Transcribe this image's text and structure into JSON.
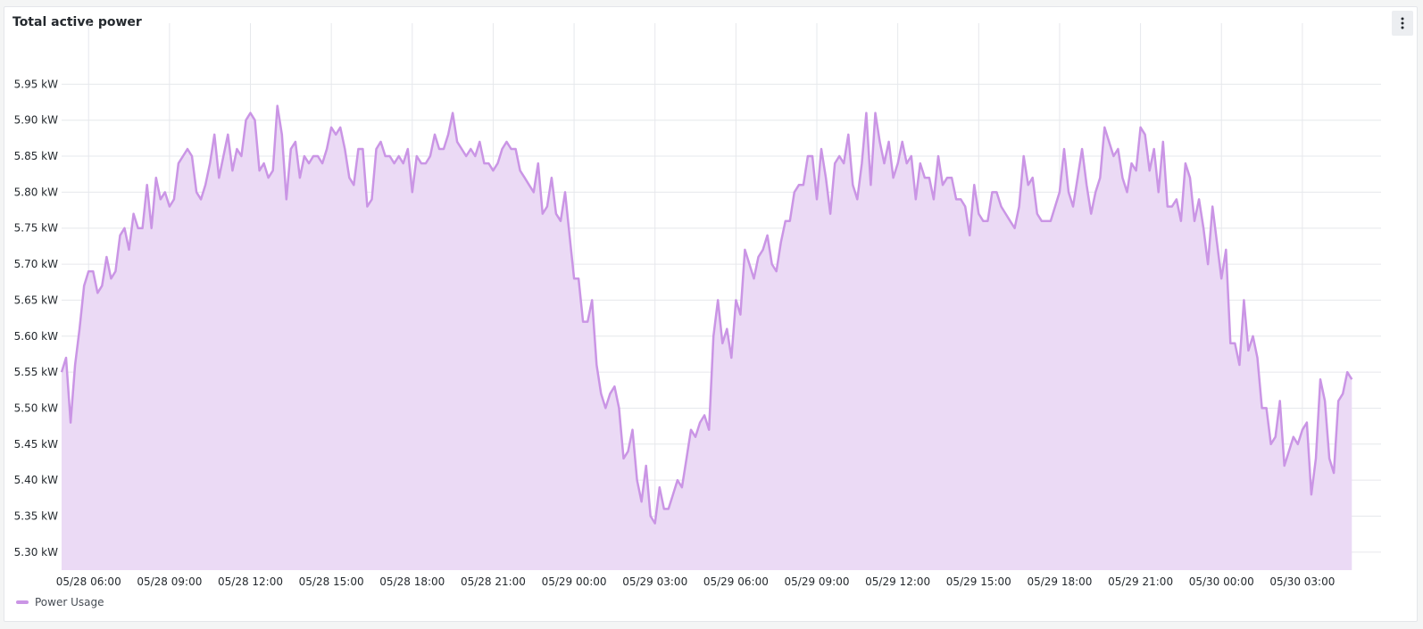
{
  "panel": {
    "title": "Total active power"
  },
  "colors": {
    "series": "#ca95e5",
    "fill": "#ebdaf5",
    "grid": "#e6e8ec",
    "text": "#24292e"
  },
  "chart_data": {
    "type": "area",
    "ylim": [
      5.275,
      6.0
    ],
    "yticks": [
      5.3,
      5.35,
      5.4,
      5.45,
      5.5,
      5.55,
      5.6,
      5.65,
      5.7,
      5.75,
      5.8,
      5.85,
      5.9,
      5.95
    ],
    "ytick_labels": [
      "5.30 kW",
      "5.35 kW",
      "5.40 kW",
      "5.45 kW",
      "5.50 kW",
      "5.55 kW",
      "5.60 kW",
      "5.65 kW",
      "5.70 kW",
      "5.75 kW",
      "5.80 kW",
      "5.85 kW",
      "5.90 kW",
      "5.95 kW"
    ],
    "xlim": [
      "05/28 05:00",
      "05/30 05:55"
    ],
    "xticks": [
      "05/28 06:00",
      "05/28 09:00",
      "05/28 12:00",
      "05/28 15:00",
      "05/28 18:00",
      "05/28 21:00",
      "05/29 00:00",
      "05/29 03:00",
      "05/29 06:00",
      "05/29 09:00",
      "05/29 12:00",
      "05/29 15:00",
      "05/29 18:00",
      "05/29 21:00",
      "05/30 00:00",
      "05/30 03:00"
    ],
    "grid": true,
    "legend": "bottom-left",
    "series": [
      {
        "name": "Power Usage",
        "step_minutes": 10,
        "start": "05/28 05:00",
        "values": [
          5.55,
          5.57,
          5.48,
          5.56,
          5.61,
          5.67,
          5.69,
          5.69,
          5.66,
          5.67,
          5.71,
          5.68,
          5.69,
          5.74,
          5.75,
          5.72,
          5.77,
          5.75,
          5.75,
          5.81,
          5.75,
          5.82,
          5.79,
          5.8,
          5.78,
          5.79,
          5.84,
          5.85,
          5.86,
          5.85,
          5.8,
          5.79,
          5.81,
          5.84,
          5.88,
          5.82,
          5.85,
          5.88,
          5.83,
          5.86,
          5.85,
          5.9,
          5.91,
          5.9,
          5.83,
          5.84,
          5.82,
          5.83,
          5.92,
          5.88,
          5.79,
          5.86,
          5.87,
          5.82,
          5.85,
          5.84,
          5.85,
          5.85,
          5.84,
          5.86,
          5.89,
          5.88,
          5.89,
          5.86,
          5.82,
          5.81,
          5.86,
          5.86,
          5.78,
          5.79,
          5.86,
          5.87,
          5.85,
          5.85,
          5.84,
          5.85,
          5.84,
          5.86,
          5.8,
          5.85,
          5.84,
          5.84,
          5.85,
          5.88,
          5.86,
          5.86,
          5.88,
          5.91,
          5.87,
          5.86,
          5.85,
          5.86,
          5.85,
          5.87,
          5.84,
          5.84,
          5.83,
          5.84,
          5.86,
          5.87,
          5.86,
          5.86,
          5.83,
          5.82,
          5.81,
          5.8,
          5.84,
          5.77,
          5.78,
          5.82,
          5.77,
          5.76,
          5.8,
          5.74,
          5.68,
          5.68,
          5.62,
          5.62,
          5.65,
          5.56,
          5.52,
          5.5,
          5.52,
          5.53,
          5.5,
          5.43,
          5.44,
          5.47,
          5.4,
          5.37,
          5.42,
          5.35,
          5.34,
          5.39,
          5.36,
          5.36,
          5.38,
          5.4,
          5.39,
          5.43,
          5.47,
          5.46,
          5.48,
          5.49,
          5.47,
          5.6,
          5.65,
          5.59,
          5.61,
          5.57,
          5.65,
          5.63,
          5.72,
          5.7,
          5.68,
          5.71,
          5.72,
          5.74,
          5.7,
          5.69,
          5.73,
          5.76,
          5.76,
          5.8,
          5.81,
          5.81,
          5.85,
          5.85,
          5.79,
          5.86,
          5.82,
          5.77,
          5.84,
          5.85,
          5.84,
          5.88,
          5.81,
          5.79,
          5.84,
          5.91,
          5.81,
          5.91,
          5.87,
          5.84,
          5.87,
          5.82,
          5.84,
          5.87,
          5.84,
          5.85,
          5.79,
          5.84,
          5.82,
          5.82,
          5.79,
          5.85,
          5.81,
          5.82,
          5.82,
          5.79,
          5.79,
          5.78,
          5.74,
          5.81,
          5.77,
          5.76,
          5.76,
          5.8,
          5.8,
          5.78,
          5.77,
          5.76,
          5.75,
          5.78,
          5.85,
          5.81,
          5.82,
          5.77,
          5.76,
          5.76,
          5.76,
          5.78,
          5.8,
          5.86,
          5.8,
          5.78,
          5.82,
          5.86,
          5.81,
          5.77,
          5.8,
          5.82,
          5.89,
          5.87,
          5.85,
          5.86,
          5.82,
          5.8,
          5.84,
          5.83,
          5.89,
          5.88,
          5.83,
          5.86,
          5.8,
          5.87,
          5.78,
          5.78,
          5.79,
          5.76,
          5.84,
          5.82,
          5.76,
          5.79,
          5.75,
          5.7,
          5.78,
          5.73,
          5.68,
          5.72,
          5.59,
          5.59,
          5.56,
          5.65,
          5.58,
          5.6,
          5.57,
          5.5,
          5.5,
          5.45,
          5.46,
          5.51,
          5.42,
          5.44,
          5.46,
          5.45,
          5.47,
          5.48,
          5.38,
          5.43,
          5.54,
          5.51,
          5.43,
          5.41,
          5.51,
          5.52,
          5.55,
          5.54
        ]
      }
    ]
  }
}
